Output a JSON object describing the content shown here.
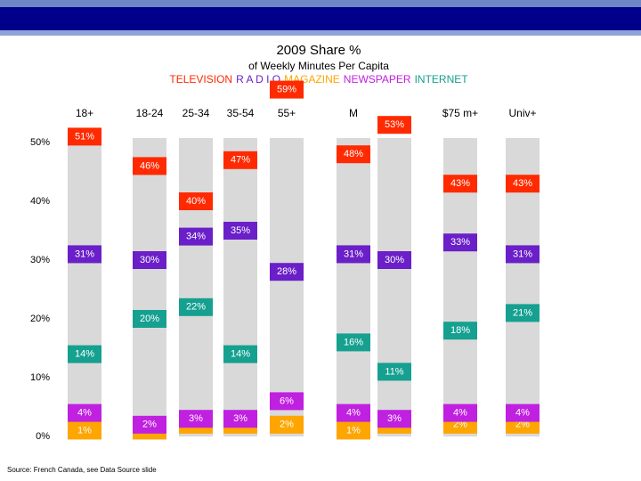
{
  "chart_data": {
    "type": "marker",
    "title": "2009 Share %",
    "subtitle": "of Weekly Minutes Per Capita",
    "source": "Source: French Canada, see Data Source slide",
    "categories": [
      "18+",
      "18-24",
      "25-34",
      "35-54",
      "55+",
      "M",
      null,
      "$75 m+",
      "Univ+"
    ],
    "ylim": [
      0,
      50
    ],
    "yticks": [
      {
        "value": 0,
        "label": "0%"
      },
      {
        "value": 10,
        "label": "10%"
      },
      {
        "value": 20,
        "label": "20%"
      },
      {
        "value": 30,
        "label": "30%"
      },
      {
        "value": 40,
        "label": "40%"
      },
      {
        "value": 50,
        "label": "50%"
      }
    ],
    "series": [
      {
        "name": "TELEVISION",
        "color": "#ff2a00",
        "values": [
          51,
          46,
          40,
          47,
          59,
          48,
          53,
          43,
          43
        ],
        "value_labels": [
          "51%",
          "46%",
          "40%",
          "47%",
          "59%",
          "48%",
          "53%",
          "43%",
          "43%"
        ]
      },
      {
        "name": "R A D I O",
        "color": "#6a1fc8",
        "values": [
          31,
          30,
          34,
          35,
          28,
          31,
          30,
          33,
          31
        ],
        "value_labels": [
          "31%",
          "30%",
          "34%",
          "35%",
          "28%",
          "31%",
          "30%",
          "33%",
          "31%"
        ]
      },
      {
        "name": "MAGAZINE",
        "color": "#ffa500",
        "values": [
          1,
          1,
          2,
          2,
          2,
          1,
          2,
          2,
          2
        ],
        "value_labels": [
          "1%",
          "1%",
          "2%",
          "2%",
          "2%",
          "1%",
          "2%",
          "2%",
          "2%"
        ]
      },
      {
        "name": "NEWSPAPER",
        "color": "#c020e0",
        "values": [
          4,
          2,
          3,
          3,
          6,
          4,
          3,
          4,
          4
        ],
        "value_labels": [
          "4%",
          "2%",
          "3%",
          "3%",
          "6%",
          "4%",
          "3%",
          "4%",
          "4%"
        ]
      },
      {
        "name": "INTERNET",
        "color": "#15a090",
        "values": [
          14,
          20,
          22,
          14,
          null,
          16,
          11,
          18,
          21
        ],
        "value_labels": [
          "14%",
          "20%",
          "22%",
          "14%",
          null,
          "16%",
          "11%",
          "18%",
          "21%"
        ]
      }
    ]
  }
}
